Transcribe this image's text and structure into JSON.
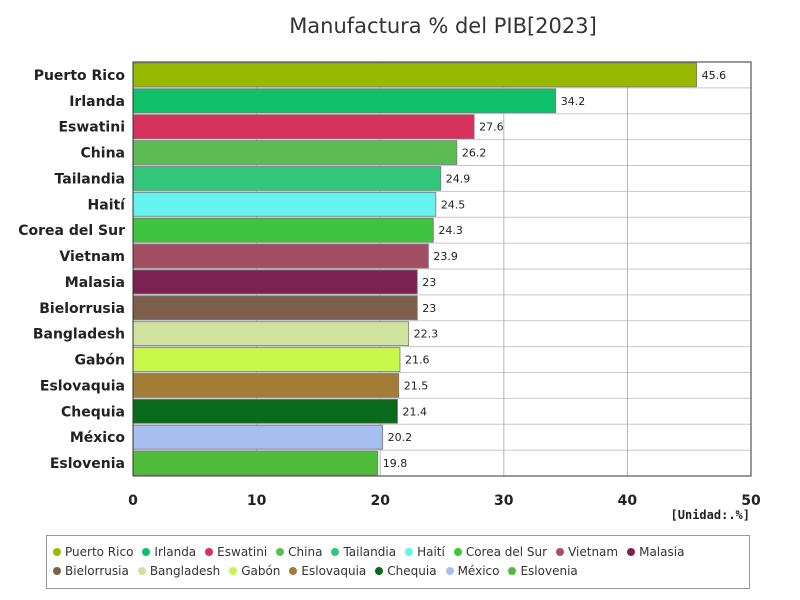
{
  "chart_data": {
    "type": "bar",
    "orientation": "horizontal",
    "title": "Manufactura % del PIB[2023]",
    "unit_label": "[Unidad:.%]",
    "xlim": [
      0,
      50
    ],
    "x_ticks": [
      "0",
      "10",
      "20",
      "30",
      "40",
      "50"
    ],
    "grid": true,
    "legend_position": "bottom",
    "categories": [
      "Puerto Rico",
      "Irlanda",
      "Eswatini",
      "China",
      "Tailandia",
      "Haití",
      "Corea del Sur",
      "Vietnam",
      "Malasia",
      "Bielorrusia",
      "Bangladesh",
      "Gabón",
      "Eslovaquia",
      "Chequia",
      "México",
      "Eslovenia"
    ],
    "values": [
      45.6,
      34.2,
      27.6,
      26.2,
      24.9,
      24.5,
      24.3,
      23.9,
      23,
      23,
      22.3,
      21.6,
      21.5,
      21.4,
      20.2,
      19.8
    ],
    "value_labels": [
      "45.6",
      "34.2",
      "27.6",
      "26.2",
      "24.9",
      "24.5",
      "24.3",
      "23.9",
      "23",
      "23",
      "22.3",
      "21.6",
      "21.5",
      "21.4",
      "20.2",
      "19.8"
    ],
    "colors": [
      "#99b800",
      "#0fbf6a",
      "#d6305d",
      "#5dbb55",
      "#33c67a",
      "#66f2ee",
      "#3ec43f",
      "#a34f63",
      "#7b2252",
      "#7d5e4a",
      "#cfe39e",
      "#c5f84a",
      "#a37c35",
      "#076b19",
      "#a7bff0",
      "#4fbc3a"
    ]
  }
}
